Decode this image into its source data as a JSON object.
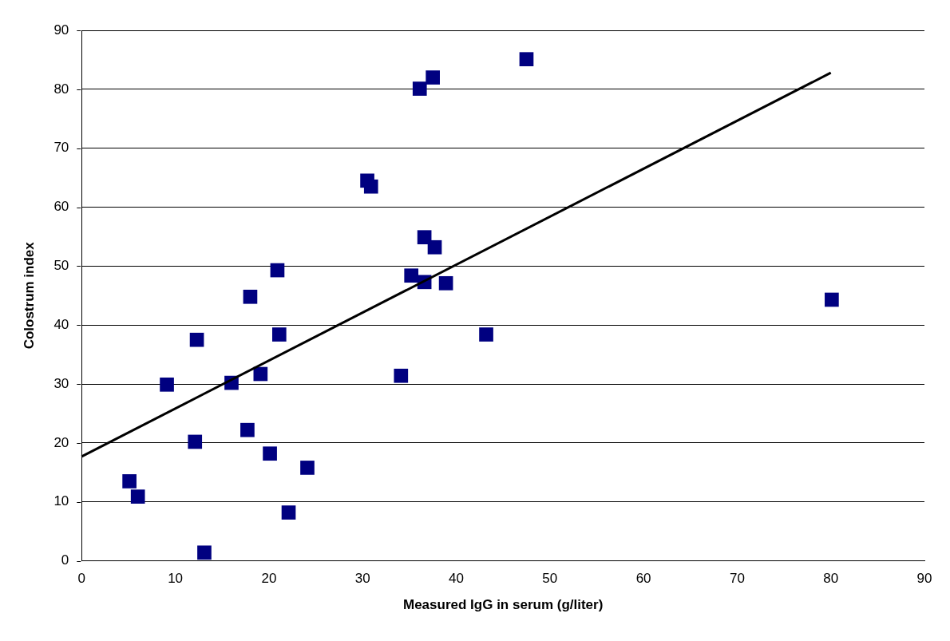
{
  "chart_data": {
    "type": "scatter",
    "xlabel": "Measured IgG in serum (g/liter)",
    "ylabel": "Colostrum index",
    "xlim": [
      0,
      90
    ],
    "xticks": [
      0,
      10,
      20,
      30,
      40,
      50,
      60,
      70,
      80,
      90
    ],
    "ylim": [
      0,
      90
    ],
    "yticks": [
      0,
      10,
      20,
      30,
      40,
      50,
      60,
      70,
      80,
      90
    ],
    "grid": "y",
    "legend": false,
    "series": [
      {
        "color": "#000080",
        "marker": "square",
        "x": [
          5.1,
          6.0,
          9.1,
          12.1,
          12.3,
          13.1,
          16.0,
          17.7,
          18.0,
          19.1,
          20.1,
          20.9,
          21.1,
          22.1,
          24.1,
          30.5,
          30.9,
          34.1,
          35.2,
          36.1,
          36.6,
          36.6,
          37.5,
          37.7,
          38.9,
          43.2,
          47.5,
          80.1
        ],
        "values": [
          13.5,
          10.9,
          29.9,
          20.2,
          37.5,
          1.4,
          30.2,
          22.2,
          44.8,
          31.7,
          18.2,
          49.3,
          38.4,
          8.2,
          15.8,
          64.5,
          63.5,
          31.4,
          48.4,
          80.1,
          54.9,
          47.3,
          82.0,
          53.2,
          47.1,
          38.4,
          85.1,
          44.3
        ]
      },
      {
        "type": "line",
        "color": "#000000",
        "marker": "none",
        "line_style": "solid",
        "x": [
          0,
          80
        ],
        "values": [
          17.7,
          82.8
        ]
      }
    ]
  }
}
